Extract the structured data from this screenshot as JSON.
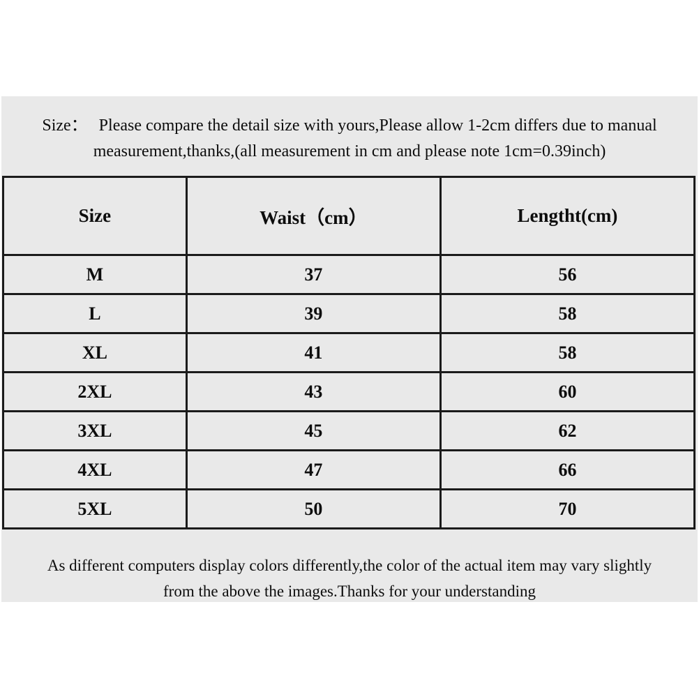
{
  "colors": {
    "page_background": "#ffffff",
    "panel_background": "#e9e9e9",
    "table_border": "#1b1b1b",
    "text": "#0d0d0d"
  },
  "top_note": {
    "label": "Size：",
    "line1": "Please compare the detail size with yours,Please allow 1-2cm differs due to manual",
    "line2": "measurement,thanks,(all measurement in cm and please note 1cm=0.39inch)"
  },
  "size_table": {
    "columns": [
      "Size",
      "Waist（cm）",
      "Lengtht(cm)"
    ],
    "rows": [
      {
        "size": "M",
        "waist": "37",
        "length": "56"
      },
      {
        "size": "L",
        "waist": "39",
        "length": "58"
      },
      {
        "size": "XL",
        "waist": "41",
        "length": "58"
      },
      {
        "size": "2XL",
        "waist": "43",
        "length": "60"
      },
      {
        "size": "3XL",
        "waist": "45",
        "length": "62"
      },
      {
        "size": "4XL",
        "waist": "47",
        "length": "66"
      },
      {
        "size": "5XL",
        "waist": "50",
        "length": "70"
      }
    ]
  },
  "bottom_note": {
    "line1": "As different computers display colors differently,the color of the actual item may vary slightly",
    "line2": "from the above the images.Thanks for your understanding"
  }
}
